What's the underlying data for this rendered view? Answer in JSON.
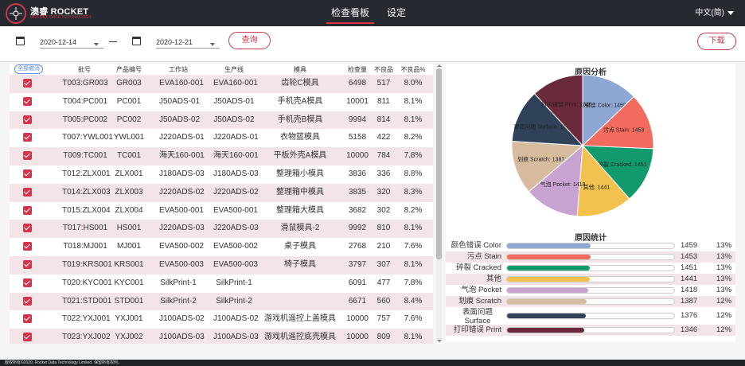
{
  "brand": {
    "name": "澳睿 ROCKET",
    "tagline": "ROCKET DATA TECHNOLOGY"
  },
  "nav": {
    "dashboard": "检查看板",
    "settings": "设定",
    "language": "中文(简)"
  },
  "filter": {
    "start_date": "2020-12-14",
    "end_date": "2020-12-21",
    "query_label": "查询",
    "download_label": "下载"
  },
  "table": {
    "select_all_label": "全部撤消",
    "headers": [
      "批号",
      "产品编号",
      "工作站",
      "生产线",
      "模具",
      "检查量",
      "不良品",
      "不良品%"
    ],
    "rows": [
      [
        "T003:GR003",
        "GR003",
        "EVA160-001",
        "EVA160-001",
        "齿轮C模具",
        "6498",
        "517",
        "8.0%"
      ],
      [
        "T004:PC001",
        "PC001",
        "J50ADS-01",
        "J50ADS-01",
        "手机壳A模具",
        "10001",
        "811",
        "8.1%"
      ],
      [
        "T005:PC002",
        "PC002",
        "J50ADS-02",
        "J50ADS-02",
        "手机壳B模具",
        "9994",
        "814",
        "8.1%"
      ],
      [
        "T007:YWL001",
        "YWL001",
        "J220ADS-01",
        "J220ADS-01",
        "衣物篮模具",
        "5158",
        "422",
        "8.2%"
      ],
      [
        "T009:TC001",
        "TC001",
        "海天160-001",
        "海天160-001",
        "平板外壳A模具",
        "10000",
        "784",
        "7.8%"
      ],
      [
        "T012:ZLX001",
        "ZLX001",
        "J180ADS-03",
        "J180ADS-03",
        "整理箱小模具",
        "3836",
        "336",
        "8.8%"
      ],
      [
        "T014:ZLX003",
        "ZLX003",
        "J220ADS-02",
        "J220ADS-02",
        "整理箱中模具",
        "3835",
        "320",
        "8.3%"
      ],
      [
        "T015:ZLX004",
        "ZLX004",
        "EVA500-001",
        "EVA500-001",
        "整理箱大模具",
        "3682",
        "302",
        "8.2%"
      ],
      [
        "T017:HS001",
        "HS001",
        "J220ADS-03",
        "J220ADS-03",
        "滑鼠模具-2",
        "9992",
        "810",
        "8.1%"
      ],
      [
        "T018:MJ001",
        "MJ001",
        "EVA500-002",
        "EVA500-002",
        "桌子模具",
        "2768",
        "210",
        "7.6%"
      ],
      [
        "T019:KRS001",
        "KRS001",
        "EVA500-003",
        "EVA500-003",
        "椅子模具",
        "3797",
        "307",
        "8.1%"
      ],
      [
        "T020:KYC001",
        "KYC001",
        "SilkPrint-1",
        "SilkPrint-1",
        "",
        "6091",
        "477",
        "7.8%"
      ],
      [
        "T021:STD001",
        "STD001",
        "SilkPrint-2",
        "SilkPrint-2",
        "",
        "6671",
        "560",
        "8.4%"
      ],
      [
        "T022:YXJ001",
        "YXJ001",
        "J100ADS-02",
        "J100ADS-02",
        "游戏机遥控上盖模具",
        "10000",
        "757",
        "7.6%"
      ],
      [
        "T023:YXJ002",
        "YXJ002",
        "J100ADS-03",
        "J100ADS-03",
        "游戏机遥控底壳模具",
        "10000",
        "809",
        "8.1%"
      ]
    ]
  },
  "analysis": {
    "pie_title": "原因分析",
    "stats_title": "原因统计"
  },
  "chart_data": {
    "type": "pie",
    "title": "原因分析",
    "slices": [
      {
        "label": "颜色错误 Color",
        "value": 1459,
        "percent": "13%",
        "color": "#8fa7d4"
      },
      {
        "label": "污点 Stain",
        "value": 1453,
        "percent": "13%",
        "color": "#f26b5e"
      },
      {
        "label": "碎裂 Cracked",
        "value": 1451,
        "percent": "13%",
        "color": "#119a6e"
      },
      {
        "label": "其他",
        "value": 1441,
        "percent": "13%",
        "color": "#f2c14e"
      },
      {
        "label": "气泡 Pocket",
        "value": 1418,
        "percent": "13%",
        "color": "#c8a3d1"
      },
      {
        "label": "划痕 Scratch",
        "value": 1387,
        "percent": "12%",
        "color": "#d6bb9e"
      },
      {
        "label": "表面问题 Surface",
        "value": 1376,
        "percent": "12%",
        "color": "#2f4259"
      },
      {
        "label": "打印错误 Print",
        "value": 1346,
        "percent": "12%",
        "color": "#6a2a3a"
      }
    ]
  },
  "footer": {
    "copyright": "版权所有©2020, Rocket Data Technology Limited. 保留所有权利。"
  }
}
